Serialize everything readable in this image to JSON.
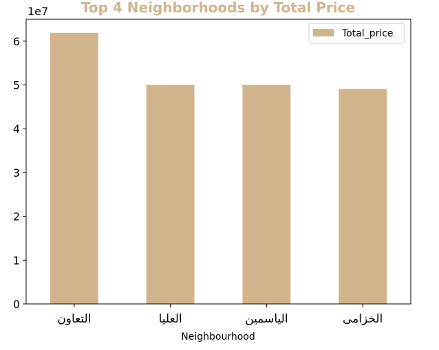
{
  "chart_data": {
    "type": "bar",
    "title": "Top 4 Neighborhoods by Total Price",
    "title_color": "#D2B48C",
    "bar_color": "#D2B48C",
    "xlabel": "Neighbourhood",
    "ylabel": "",
    "categories": [
      "التعاون",
      "العليا",
      "الياسمين",
      "الخزامى"
    ],
    "series": [
      {
        "name": "Total_price",
        "values": [
          61900000,
          50000000,
          50000000,
          49100000
        ]
      }
    ],
    "ylim": [
      0,
      65000000
    ],
    "yticks": [
      0,
      1,
      2,
      3,
      4,
      5,
      6
    ],
    "y_scale_label": "1e7",
    "y_scale": 10000000,
    "grid": false,
    "legend": "top-right"
  }
}
